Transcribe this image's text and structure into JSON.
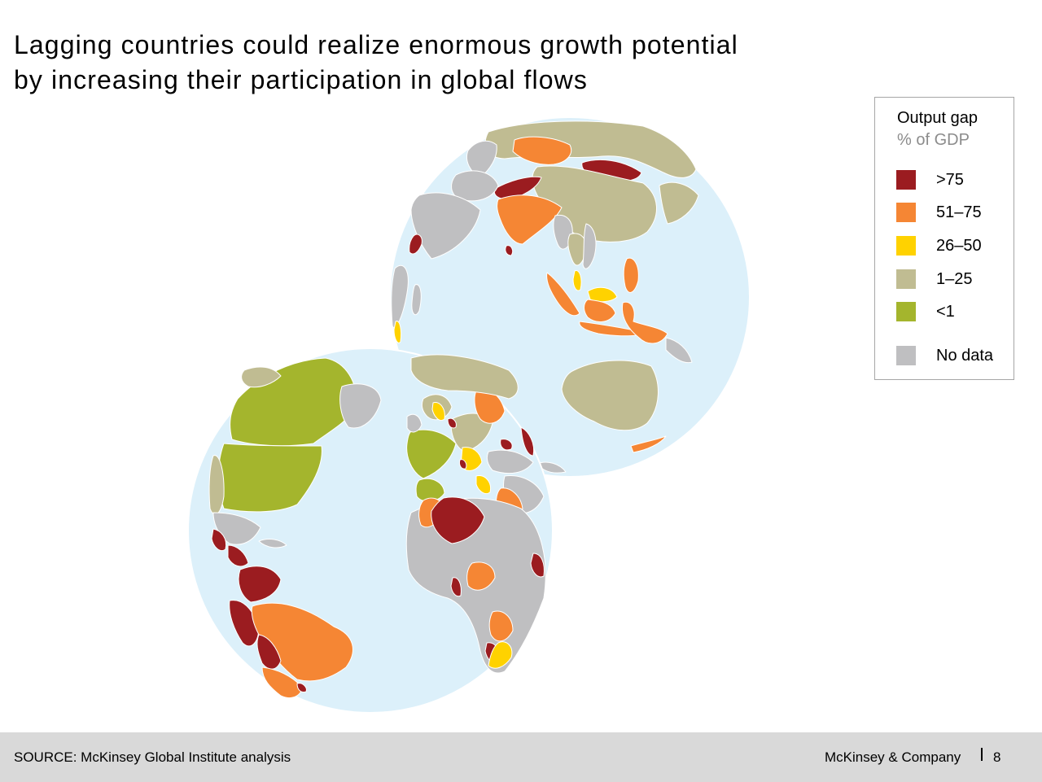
{
  "title": {
    "line1": "Lagging countries could realize enormous growth potential",
    "line2": "by increasing their participation in global flows"
  },
  "legend": {
    "title": "Output gap",
    "subtitle": "% of GDP",
    "items": [
      {
        "label": ">75",
        "color": "#9b1c20"
      },
      {
        "label": "51–75",
        "color": "#f58634"
      },
      {
        "label": "26–50",
        "color": "#ffd200"
      },
      {
        "label": "1–25",
        "color": "#c0bc92"
      },
      {
        "label": "<1",
        "color": "#a4b52d"
      },
      {
        "label": "No data",
        "color": "#bfbfc1"
      }
    ]
  },
  "colors": {
    "ocean": "#dcf0fa",
    "border": "#ffffff"
  },
  "footer": {
    "source": "SOURCE: McKinsey Global Institute analysis",
    "brand": "McKinsey & Company",
    "page": "8"
  }
}
